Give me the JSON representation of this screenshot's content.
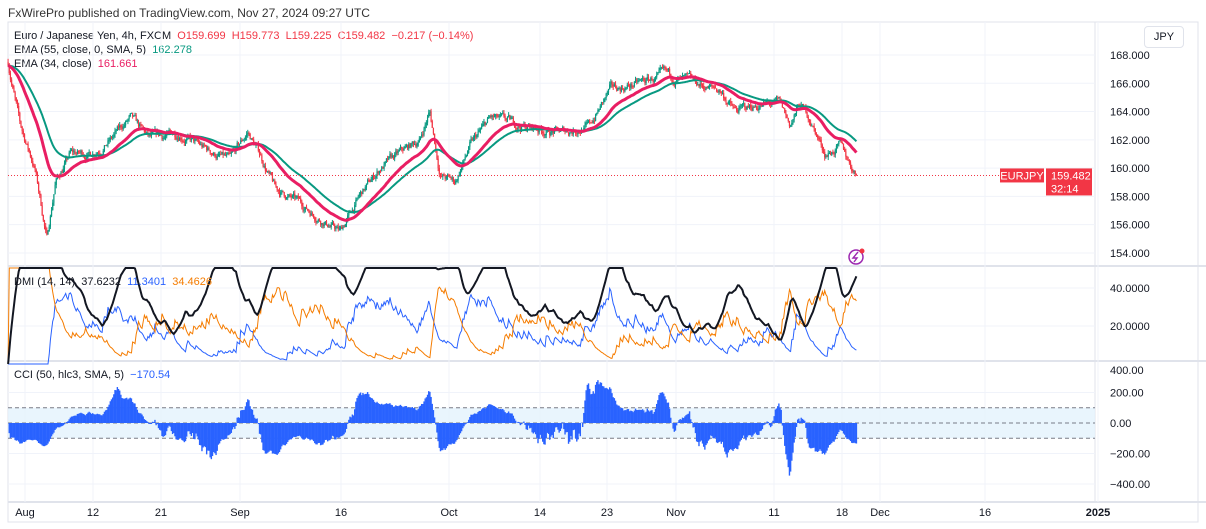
{
  "header": {
    "published": "FxWirePro published on TradingView.com, Nov 27, 2024 09:27 UTC"
  },
  "legend": {
    "symbol": "Euro / Japanese Yen, 4h, FXCM",
    "o": "O159.699",
    "h": "H159.773",
    "l": "L159.225",
    "c": "C159.482",
    "chg": "−0.217 (−0.14%)",
    "ema55": "EMA (55, close, 0, SMA, 5)",
    "ema55_val": "162.278",
    "ema34": "EMA (34, close)",
    "ema34_val": "161.661",
    "dmi": "DMI (14, 14)",
    "adx": "37.6232",
    "pdi": "11.3401",
    "mdi": "34.4626",
    "cci": "CCI (50, hlc3, SMA, 5)",
    "cci_val": "−170.54"
  },
  "currency": "JPY",
  "last": {
    "symbol": "EURJPY",
    "price": "159.482",
    "countdown": "32:14"
  },
  "colors": {
    "up": "#089981",
    "down": "#f23645",
    "ema55": "#089981",
    "ema34": "#e91e63",
    "adx": "#131722",
    "pdi": "#2962ff",
    "mdi": "#f57c00",
    "cci": "#2962ff"
  },
  "chart_data": {
    "type": "candlestick",
    "title": "Euro / Japanese Yen, 4h, FXCM",
    "price_ticks": [
      "168.000",
      "166.000",
      "164.000",
      "162.000",
      "160.000",
      "158.000",
      "156.000",
      "154.000"
    ],
    "dmi_ticks": [
      "40.0000",
      "20.0000"
    ],
    "cci_ticks": [
      "400.00",
      "200.00",
      "0.00",
      "−200.00",
      "−400.00"
    ],
    "time_ticks": [
      "Aug",
      "12",
      "21",
      "Sep",
      "16",
      "Oct",
      "14",
      "23",
      "Nov",
      "11",
      "18",
      "Dec",
      "16",
      "2025"
    ],
    "price_ylim": [
      153,
      169
    ],
    "close_path_days_since_aug1": [
      [
        -2.4,
        167.5
      ],
      [
        -0.7,
        163
      ],
      [
        1.4,
        160
      ],
      [
        3.1,
        155
      ],
      [
        4.3,
        159
      ],
      [
        6.4,
        161
      ],
      [
        9.2,
        161
      ],
      [
        12.1,
        162
      ],
      [
        14.9,
        163.5
      ],
      [
        17.7,
        162
      ],
      [
        22,
        162.5
      ],
      [
        24.8,
        161.5
      ],
      [
        29.1,
        160.5
      ],
      [
        31.6,
        162.5
      ],
      [
        33.3,
        161
      ],
      [
        35.5,
        158.5
      ],
      [
        39,
        157.5
      ],
      [
        41.8,
        156.5
      ],
      [
        44.7,
        155.5
      ],
      [
        47.5,
        158
      ],
      [
        50.4,
        160
      ],
      [
        53.2,
        161
      ],
      [
        56,
        162
      ],
      [
        57.4,
        164
      ],
      [
        58.9,
        159.5
      ],
      [
        61,
        159
      ],
      [
        63.1,
        161.5
      ],
      [
        66,
        163.5
      ],
      [
        70.2,
        163
      ],
      [
        75.9,
        162.5
      ],
      [
        80.1,
        163
      ],
      [
        83,
        165.5
      ],
      [
        87.2,
        166
      ],
      [
        90.8,
        166.5
      ],
      [
        94.3,
        166
      ],
      [
        98.6,
        165.5
      ],
      [
        100.7,
        164
      ],
      [
        104.3,
        164.5
      ],
      [
        107.1,
        164.5
      ],
      [
        108.5,
        163
      ],
      [
        109.9,
        164.5
      ],
      [
        111.3,
        163.5
      ],
      [
        113.5,
        161
      ],
      [
        115.6,
        161.5
      ],
      [
        118,
        159.482
      ]
    ]
  }
}
